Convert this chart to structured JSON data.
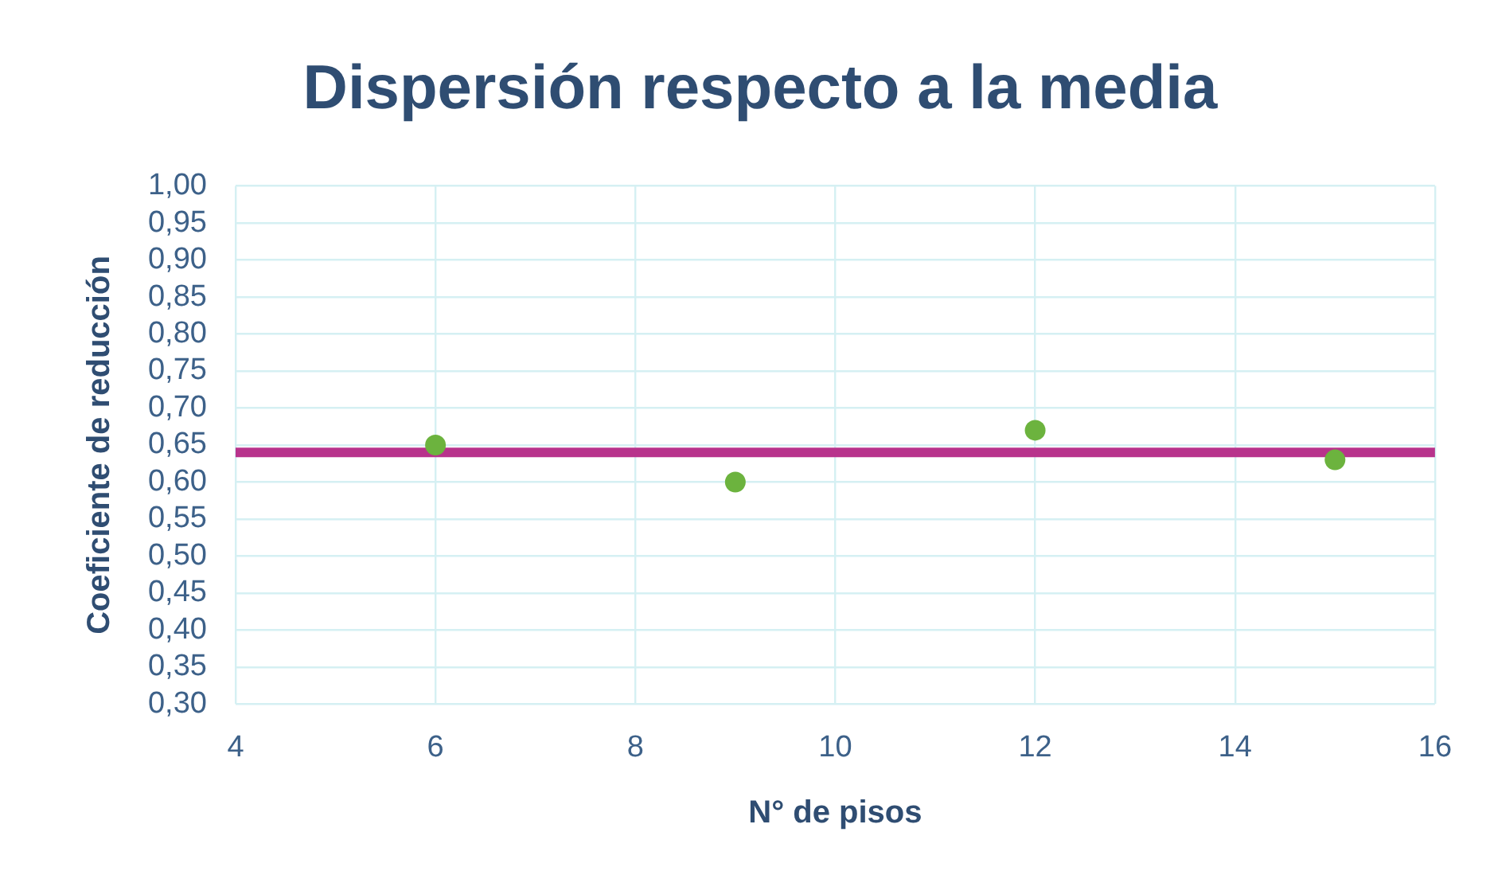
{
  "chart_data": {
    "type": "scatter",
    "title": "Dispersión respecto a la media",
    "xlabel": "N° de pisos",
    "ylabel": "Coeficiente de reducción",
    "x": [
      6,
      9,
      12,
      15
    ],
    "series": [
      {
        "color": "#6cb33e",
        "values": [
          0.65,
          0.6,
          0.67,
          0.63
        ]
      }
    ],
    "xlim": [
      4,
      16
    ],
    "xticks": [
      4,
      6,
      8,
      10,
      12,
      14,
      16
    ],
    "ylim": [
      0.3,
      1.0
    ],
    "yticks": [
      {
        "value": 0.3,
        "label": "0,30"
      },
      {
        "value": 0.35,
        "label": "0,35"
      },
      {
        "value": 0.4,
        "label": "0,40"
      },
      {
        "value": 0.45,
        "label": "0,45"
      },
      {
        "value": 0.5,
        "label": "0,50"
      },
      {
        "value": 0.55,
        "label": "0,55"
      },
      {
        "value": 0.6,
        "label": "0,60"
      },
      {
        "value": 0.65,
        "label": "0,65"
      },
      {
        "value": 0.7,
        "label": "0,70"
      },
      {
        "value": 0.75,
        "label": "0,75"
      },
      {
        "value": 0.8,
        "label": "0,80"
      },
      {
        "value": 0.85,
        "label": "0,85"
      },
      {
        "value": 0.9,
        "label": "0,90"
      },
      {
        "value": 0.95,
        "label": "0,95"
      },
      {
        "value": 1.0,
        "label": "1,00"
      }
    ],
    "ref_lines": [
      {
        "axis": "y",
        "value": 0.64,
        "color": "#b8338c"
      }
    ],
    "grid": true,
    "legend": false,
    "marker": "circle"
  }
}
